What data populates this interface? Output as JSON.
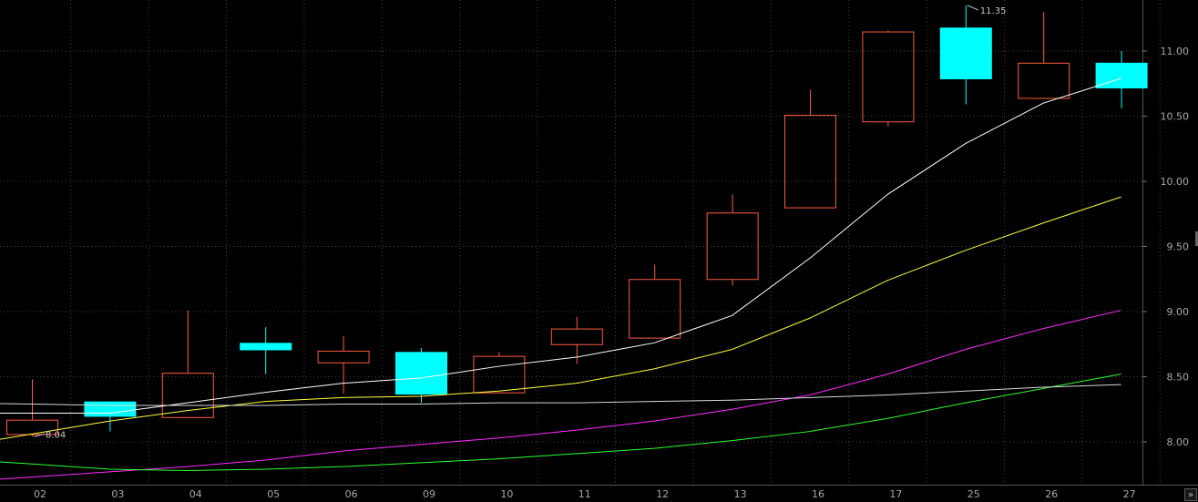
{
  "chart_data": {
    "type": "candlestick",
    "categories": [
      "02",
      "03",
      "04",
      "05",
      "06",
      "09",
      "10",
      "11",
      "12",
      "13",
      "16",
      "17",
      "25",
      "26",
      "27"
    ],
    "ohlc": [
      {
        "open": 8.06,
        "high": 8.48,
        "low": 8.04,
        "close": 8.17
      },
      {
        "open": 8.31,
        "high": 8.31,
        "low": 8.08,
        "close": 8.2
      },
      {
        "open": 8.19,
        "high": 9.01,
        "low": 8.19,
        "close": 8.53
      },
      {
        "open": 8.76,
        "high": 8.88,
        "low": 8.52,
        "close": 8.71
      },
      {
        "open": 8.61,
        "high": 8.81,
        "low": 8.37,
        "close": 8.7
      },
      {
        "open": 8.69,
        "high": 8.72,
        "low": 8.3,
        "close": 8.37
      },
      {
        "open": 8.38,
        "high": 8.69,
        "low": 8.37,
        "close": 8.66
      },
      {
        "open": 8.75,
        "high": 8.96,
        "low": 8.6,
        "close": 8.87
      },
      {
        "open": 8.8,
        "high": 9.36,
        "low": 8.8,
        "close": 9.25
      },
      {
        "open": 9.25,
        "high": 9.9,
        "low": 9.2,
        "close": 9.76
      },
      {
        "open": 9.8,
        "high": 10.7,
        "low": 9.8,
        "close": 10.51
      },
      {
        "open": 10.46,
        "high": 11.16,
        "low": 10.42,
        "close": 11.15
      },
      {
        "open": 11.18,
        "high": 11.35,
        "low": 10.59,
        "close": 10.79
      },
      {
        "open": 10.64,
        "high": 11.3,
        "low": 10.64,
        "close": 10.91
      },
      {
        "open": 10.91,
        "high": 11.0,
        "low": 10.56,
        "close": 10.72
      }
    ],
    "moving_averages": [
      {
        "color": "#ffffff",
        "values": [
          8.22,
          8.22,
          8.3,
          8.38,
          8.45,
          8.49,
          8.58,
          8.65,
          8.76,
          8.97,
          9.41,
          9.9,
          10.29,
          10.6,
          10.79
        ]
      },
      {
        "color": "#ffff3c",
        "values": [
          8.06,
          8.16,
          8.24,
          8.31,
          8.34,
          8.35,
          8.39,
          8.45,
          8.56,
          8.71,
          8.95,
          9.24,
          9.47,
          9.68,
          9.88
        ]
      },
      {
        "color": "#ff2cff",
        "values": [
          7.73,
          7.77,
          7.81,
          7.86,
          7.93,
          7.98,
          8.03,
          8.09,
          8.16,
          8.25,
          8.36,
          8.52,
          8.71,
          8.87,
          9.01
        ]
      },
      {
        "color": "#2cff2c",
        "values": [
          7.83,
          7.79,
          7.78,
          7.79,
          7.81,
          7.84,
          7.87,
          7.91,
          7.95,
          8.01,
          8.08,
          8.18,
          8.3,
          8.41,
          8.52
        ]
      },
      {
        "color": "#d8d8d8",
        "values": [
          8.29,
          8.28,
          8.28,
          8.28,
          8.29,
          8.29,
          8.3,
          8.3,
          8.31,
          8.32,
          8.34,
          8.36,
          8.39,
          8.42,
          8.44
        ]
      }
    ],
    "y_ticks": [
      "8.00",
      "8.50",
      "9.00",
      "9.50",
      "10.00",
      "10.50",
      "11.00"
    ],
    "ylim": [
      7.72,
      11.42
    ],
    "grid": true,
    "annotations": {
      "high_label": "11.35",
      "low_label": "8.04"
    },
    "colors": {
      "up": "#ff5a40",
      "down": "#00ffff",
      "background": "#000000",
      "grid": "#444444"
    }
  },
  "ui": {
    "scroll_button": "»"
  }
}
